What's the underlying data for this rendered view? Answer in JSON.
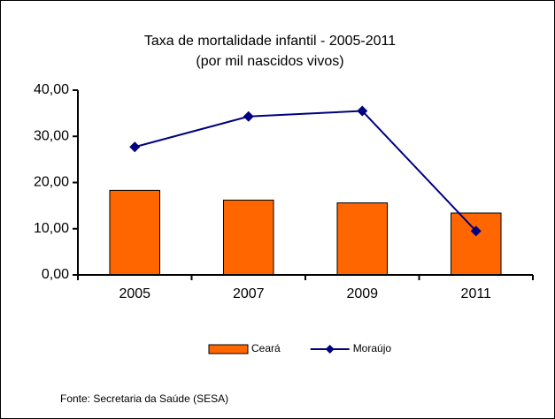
{
  "chart_data": {
    "type": "bar",
    "title": "Taxa de mortalidade infantil - 2005-2011",
    "subtitle": "(por mil nascidos vivos)",
    "categories": [
      "2005",
      "2007",
      "2009",
      "2011"
    ],
    "series": [
      {
        "name": "Ceará",
        "type": "bar",
        "color": "#ff6600",
        "values": [
          18.3,
          16.2,
          15.6,
          13.4
        ]
      },
      {
        "name": "Moraújo",
        "type": "line",
        "color": "#000080",
        "values": [
          27.7,
          34.3,
          35.5,
          9.5
        ]
      }
    ],
    "ylim": [
      0,
      40
    ],
    "yticks": [
      {
        "value": 0,
        "label": "0,00"
      },
      {
        "value": 10,
        "label": "10,00"
      },
      {
        "value": 20,
        "label": "20,00"
      },
      {
        "value": 30,
        "label": "30,00"
      },
      {
        "value": 40,
        "label": "40,00"
      }
    ],
    "legend": "bottom",
    "source": "Fonte: Secretaria da Saúde (SESA)"
  }
}
